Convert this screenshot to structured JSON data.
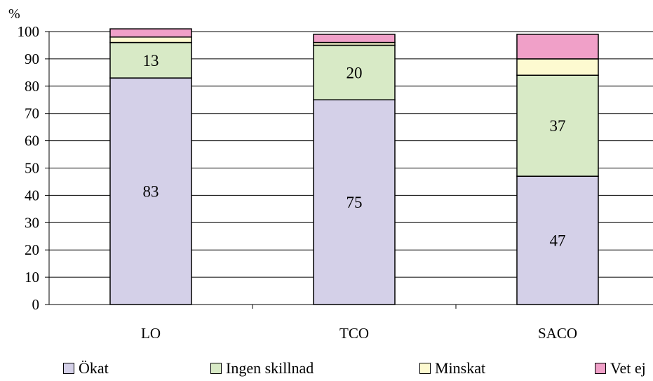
{
  "chart_data": {
    "type": "bar",
    "stacked": true,
    "ylabel": "%",
    "ylim": [
      0,
      100
    ],
    "yticks": [
      0,
      10,
      20,
      30,
      40,
      50,
      60,
      70,
      80,
      90,
      100
    ],
    "categories": [
      "LO",
      "TCO",
      "SACO"
    ],
    "series": [
      {
        "name": "Ökat",
        "color": "#d4d0e8",
        "values": [
          83,
          75,
          47
        ],
        "labels": [
          "83",
          "75",
          "47"
        ]
      },
      {
        "name": "Ingen skillnad",
        "color": "#d8eac6",
        "values": [
          13,
          20,
          37
        ],
        "labels": [
          "13",
          "20",
          "37"
        ]
      },
      {
        "name": "Minskat",
        "color": "#fdfad0",
        "values": [
          2,
          1,
          6
        ],
        "labels": [
          "",
          "",
          ""
        ]
      },
      {
        "name": "Vet ej",
        "color": "#f0a0c8",
        "values": [
          3,
          3,
          9
        ],
        "labels": [
          "",
          "",
          ""
        ]
      }
    ],
    "grid": true,
    "legend_position": "bottom"
  }
}
